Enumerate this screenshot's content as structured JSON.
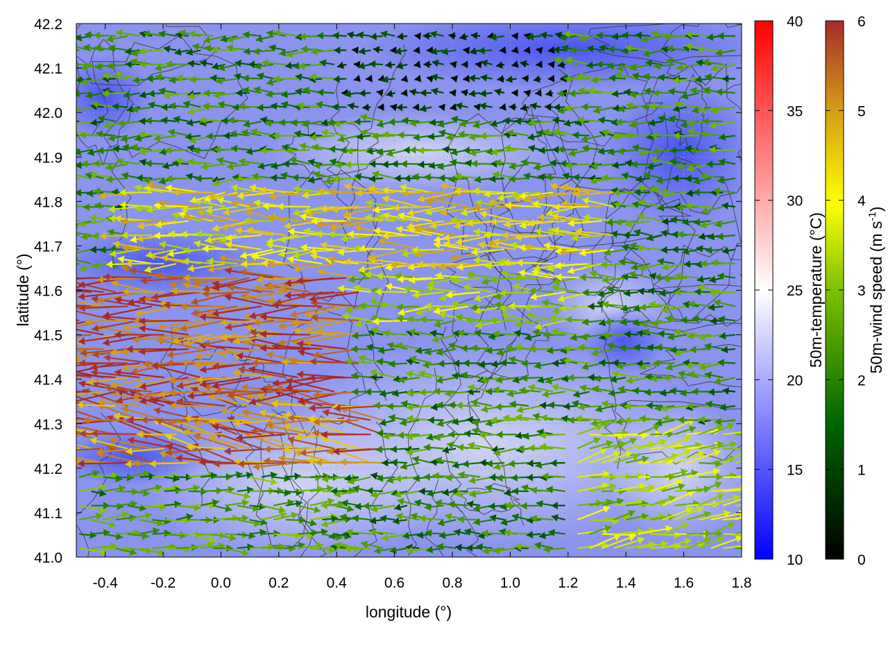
{
  "chart_data": {
    "type": "heatmap",
    "subtype": "wind-vector field over temperature map with elevation contours",
    "xlabel": "longitude (°)",
    "ylabel": "latitude (°)",
    "xlim": [
      -0.5,
      1.8
    ],
    "ylim": [
      41.0,
      42.2
    ],
    "x_ticks": [
      "-0.4",
      "-0.2",
      "0.0",
      "0.2",
      "0.4",
      "0.6",
      "0.8",
      "1.0",
      "1.2",
      "1.4",
      "1.6",
      "1.8"
    ],
    "x_tick_values": [
      -0.4,
      -0.2,
      0.0,
      0.2,
      0.4,
      0.6,
      0.8,
      1.0,
      1.2,
      1.4,
      1.6,
      1.8
    ],
    "y_ticks": [
      "41.0",
      "41.1",
      "41.2",
      "41.3",
      "41.4",
      "41.5",
      "41.6",
      "41.7",
      "41.8",
      "41.9",
      "42.0",
      "42.1",
      "42.2"
    ],
    "y_tick_values": [
      41.0,
      41.1,
      41.2,
      41.3,
      41.4,
      41.5,
      41.6,
      41.7,
      41.8,
      41.9,
      42.0,
      42.1,
      42.2
    ],
    "grid": true,
    "temperature_colorbar": {
      "label": "50m-temperature (°C)",
      "range": [
        10,
        40
      ],
      "ticks": [
        "10",
        "15",
        "20",
        "25",
        "30",
        "35",
        "40"
      ],
      "tick_values": [
        10,
        15,
        20,
        25,
        30,
        35,
        40
      ],
      "colors": {
        "low": "#0000ff",
        "mid": "#ffffff",
        "high": "#ff0000"
      }
    },
    "wind_colorbar": {
      "label_main": "50m-wind speed (m s",
      "label_sup": "-1",
      "label_close": ")",
      "range": [
        0,
        6
      ],
      "ticks": [
        "0",
        "1",
        "2",
        "3",
        "4",
        "5",
        "6"
      ],
      "tick_values": [
        0,
        1,
        2,
        3,
        4,
        5,
        6
      ],
      "colors": [
        "#000000",
        "#006400",
        "#7cc000",
        "#ffff00",
        "#d4a017",
        "#a52a2a"
      ]
    },
    "wind_regions": [
      {
        "lon": [
          -0.5,
          0.5
        ],
        "lat": [
          41.35,
          41.65
        ],
        "speed": 5.7,
        "u": -1.0,
        "v": 0.0
      },
      {
        "lon": [
          -0.5,
          0.6
        ],
        "lat": [
          41.2,
          41.35
        ],
        "speed": 5.3,
        "u": -1.0,
        "v": 0.15
      },
      {
        "lon": [
          -0.3,
          1.4
        ],
        "lat": [
          41.65,
          41.85
        ],
        "speed": 4.2,
        "u": -1.0,
        "v": 0.0
      },
      {
        "lon": [
          0.5,
          1.3
        ],
        "lat": [
          41.5,
          41.65
        ],
        "speed": 3.2,
        "u": -1.0,
        "v": 0.0
      },
      {
        "lon": [
          1.2,
          1.8
        ],
        "lat": [
          41.0,
          41.3
        ],
        "speed": 3.3,
        "u": 1.0,
        "v": 0.2
      },
      {
        "lon": [
          0.4,
          1.2
        ],
        "lat": [
          42.0,
          42.2
        ],
        "speed": 0.5,
        "u": -1.0,
        "v": 0.0
      },
      {
        "lon": [
          -0.5,
          0.4
        ],
        "lat": [
          41.0,
          41.2
        ],
        "speed": 2.3,
        "u": 1.0,
        "v": 0.0
      }
    ],
    "temperature_field": "mostly 15–22 °C; coolest (≈14 °C) along northern edge and northeast, warmest (≈22 °C) in the south-central lowlands"
  }
}
